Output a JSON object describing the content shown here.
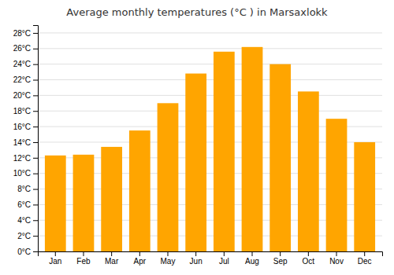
{
  "chart_data": {
    "type": "bar",
    "title": "Average monthly temperatures (°C ) in Marsaxlokk",
    "categories": [
      "Jan",
      "Feb",
      "Mar",
      "Apr",
      "May",
      "Jun",
      "Jul",
      "Aug",
      "Sep",
      "Oct",
      "Nov",
      "Dec"
    ],
    "values": [
      12.3,
      12.4,
      13.4,
      15.5,
      19.0,
      22.8,
      25.6,
      26.2,
      24.0,
      20.5,
      17.0,
      14.0
    ],
    "color": "#FFA500",
    "ylim": [
      0,
      29
    ],
    "yticks": [
      {
        "value": 0,
        "label": "0°C"
      },
      {
        "value": 2,
        "label": "2°C"
      },
      {
        "value": 4,
        "label": "4°C"
      },
      {
        "value": 6,
        "label": "6°C"
      },
      {
        "value": 8,
        "label": "8°C"
      },
      {
        "value": 10,
        "label": "10°C"
      },
      {
        "value": 12,
        "label": "12°C"
      },
      {
        "value": 14,
        "label": "14°C"
      },
      {
        "value": 16,
        "label": "16°C"
      },
      {
        "value": 18,
        "label": "18°C"
      },
      {
        "value": 20,
        "label": "20°C"
      },
      {
        "value": 22,
        "label": "22°C"
      },
      {
        "value": 24,
        "label": "24°C"
      },
      {
        "value": 26,
        "label": "26°C"
      },
      {
        "value": 28,
        "label": "28°C"
      }
    ],
    "grid": true
  }
}
